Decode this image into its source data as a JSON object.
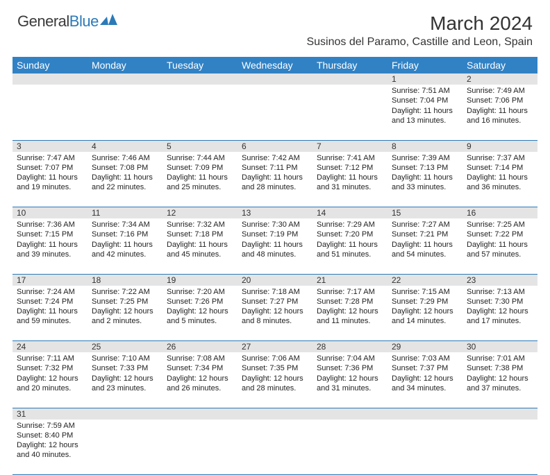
{
  "logo": {
    "general": "General",
    "blue": "Blue"
  },
  "title": "March 2024",
  "location": "Susinos del Paramo, Castille and Leon, Spain",
  "day_headers": [
    "Sunday",
    "Monday",
    "Tuesday",
    "Wednesday",
    "Thursday",
    "Friday",
    "Saturday"
  ],
  "colors": {
    "header_bg": "#3182c5",
    "header_text": "#ffffff",
    "daynum_bg": "#e4e4e4",
    "divider": "#2b7ab8",
    "text": "#222222",
    "logo_gray": "#3a3a3a",
    "logo_blue": "#2b7ab8"
  },
  "weeks": [
    [
      null,
      null,
      null,
      null,
      null,
      {
        "n": "1",
        "sr": "Sunrise: 7:51 AM",
        "ss": "Sunset: 7:04 PM",
        "d1": "Daylight: 11 hours",
        "d2": "and 13 minutes."
      },
      {
        "n": "2",
        "sr": "Sunrise: 7:49 AM",
        "ss": "Sunset: 7:06 PM",
        "d1": "Daylight: 11 hours",
        "d2": "and 16 minutes."
      }
    ],
    [
      {
        "n": "3",
        "sr": "Sunrise: 7:47 AM",
        "ss": "Sunset: 7:07 PM",
        "d1": "Daylight: 11 hours",
        "d2": "and 19 minutes."
      },
      {
        "n": "4",
        "sr": "Sunrise: 7:46 AM",
        "ss": "Sunset: 7:08 PM",
        "d1": "Daylight: 11 hours",
        "d2": "and 22 minutes."
      },
      {
        "n": "5",
        "sr": "Sunrise: 7:44 AM",
        "ss": "Sunset: 7:09 PM",
        "d1": "Daylight: 11 hours",
        "d2": "and 25 minutes."
      },
      {
        "n": "6",
        "sr": "Sunrise: 7:42 AM",
        "ss": "Sunset: 7:11 PM",
        "d1": "Daylight: 11 hours",
        "d2": "and 28 minutes."
      },
      {
        "n": "7",
        "sr": "Sunrise: 7:41 AM",
        "ss": "Sunset: 7:12 PM",
        "d1": "Daylight: 11 hours",
        "d2": "and 31 minutes."
      },
      {
        "n": "8",
        "sr": "Sunrise: 7:39 AM",
        "ss": "Sunset: 7:13 PM",
        "d1": "Daylight: 11 hours",
        "d2": "and 33 minutes."
      },
      {
        "n": "9",
        "sr": "Sunrise: 7:37 AM",
        "ss": "Sunset: 7:14 PM",
        "d1": "Daylight: 11 hours",
        "d2": "and 36 minutes."
      }
    ],
    [
      {
        "n": "10",
        "sr": "Sunrise: 7:36 AM",
        "ss": "Sunset: 7:15 PM",
        "d1": "Daylight: 11 hours",
        "d2": "and 39 minutes."
      },
      {
        "n": "11",
        "sr": "Sunrise: 7:34 AM",
        "ss": "Sunset: 7:16 PM",
        "d1": "Daylight: 11 hours",
        "d2": "and 42 minutes."
      },
      {
        "n": "12",
        "sr": "Sunrise: 7:32 AM",
        "ss": "Sunset: 7:18 PM",
        "d1": "Daylight: 11 hours",
        "d2": "and 45 minutes."
      },
      {
        "n": "13",
        "sr": "Sunrise: 7:30 AM",
        "ss": "Sunset: 7:19 PM",
        "d1": "Daylight: 11 hours",
        "d2": "and 48 minutes."
      },
      {
        "n": "14",
        "sr": "Sunrise: 7:29 AM",
        "ss": "Sunset: 7:20 PM",
        "d1": "Daylight: 11 hours",
        "d2": "and 51 minutes."
      },
      {
        "n": "15",
        "sr": "Sunrise: 7:27 AM",
        "ss": "Sunset: 7:21 PM",
        "d1": "Daylight: 11 hours",
        "d2": "and 54 minutes."
      },
      {
        "n": "16",
        "sr": "Sunrise: 7:25 AM",
        "ss": "Sunset: 7:22 PM",
        "d1": "Daylight: 11 hours",
        "d2": "and 57 minutes."
      }
    ],
    [
      {
        "n": "17",
        "sr": "Sunrise: 7:24 AM",
        "ss": "Sunset: 7:24 PM",
        "d1": "Daylight: 11 hours",
        "d2": "and 59 minutes."
      },
      {
        "n": "18",
        "sr": "Sunrise: 7:22 AM",
        "ss": "Sunset: 7:25 PM",
        "d1": "Daylight: 12 hours",
        "d2": "and 2 minutes."
      },
      {
        "n": "19",
        "sr": "Sunrise: 7:20 AM",
        "ss": "Sunset: 7:26 PM",
        "d1": "Daylight: 12 hours",
        "d2": "and 5 minutes."
      },
      {
        "n": "20",
        "sr": "Sunrise: 7:18 AM",
        "ss": "Sunset: 7:27 PM",
        "d1": "Daylight: 12 hours",
        "d2": "and 8 minutes."
      },
      {
        "n": "21",
        "sr": "Sunrise: 7:17 AM",
        "ss": "Sunset: 7:28 PM",
        "d1": "Daylight: 12 hours",
        "d2": "and 11 minutes."
      },
      {
        "n": "22",
        "sr": "Sunrise: 7:15 AM",
        "ss": "Sunset: 7:29 PM",
        "d1": "Daylight: 12 hours",
        "d2": "and 14 minutes."
      },
      {
        "n": "23",
        "sr": "Sunrise: 7:13 AM",
        "ss": "Sunset: 7:30 PM",
        "d1": "Daylight: 12 hours",
        "d2": "and 17 minutes."
      }
    ],
    [
      {
        "n": "24",
        "sr": "Sunrise: 7:11 AM",
        "ss": "Sunset: 7:32 PM",
        "d1": "Daylight: 12 hours",
        "d2": "and 20 minutes."
      },
      {
        "n": "25",
        "sr": "Sunrise: 7:10 AM",
        "ss": "Sunset: 7:33 PM",
        "d1": "Daylight: 12 hours",
        "d2": "and 23 minutes."
      },
      {
        "n": "26",
        "sr": "Sunrise: 7:08 AM",
        "ss": "Sunset: 7:34 PM",
        "d1": "Daylight: 12 hours",
        "d2": "and 26 minutes."
      },
      {
        "n": "27",
        "sr": "Sunrise: 7:06 AM",
        "ss": "Sunset: 7:35 PM",
        "d1": "Daylight: 12 hours",
        "d2": "and 28 minutes."
      },
      {
        "n": "28",
        "sr": "Sunrise: 7:04 AM",
        "ss": "Sunset: 7:36 PM",
        "d1": "Daylight: 12 hours",
        "d2": "and 31 minutes."
      },
      {
        "n": "29",
        "sr": "Sunrise: 7:03 AM",
        "ss": "Sunset: 7:37 PM",
        "d1": "Daylight: 12 hours",
        "d2": "and 34 minutes."
      },
      {
        "n": "30",
        "sr": "Sunrise: 7:01 AM",
        "ss": "Sunset: 7:38 PM",
        "d1": "Daylight: 12 hours",
        "d2": "and 37 minutes."
      }
    ],
    [
      {
        "n": "31",
        "sr": "Sunrise: 7:59 AM",
        "ss": "Sunset: 8:40 PM",
        "d1": "Daylight: 12 hours",
        "d2": "and 40 minutes."
      },
      null,
      null,
      null,
      null,
      null,
      null
    ]
  ]
}
